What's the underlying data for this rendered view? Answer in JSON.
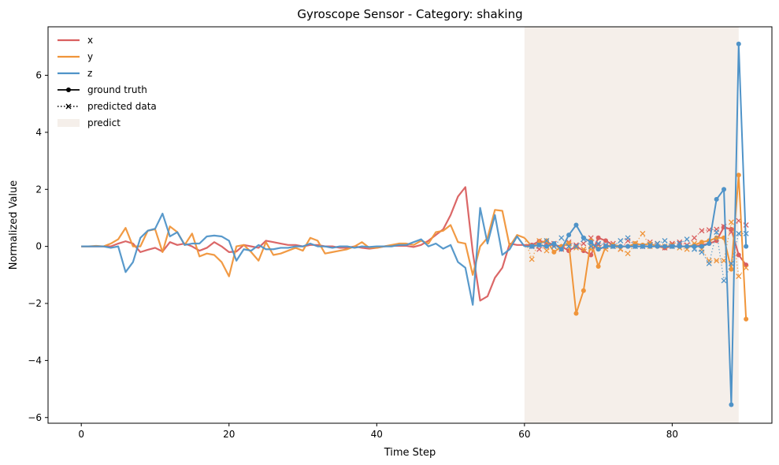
{
  "chart_data": {
    "type": "line",
    "title": "Gyroscope Sensor - Category: shaking",
    "xlabel": "Time Step",
    "ylabel": "Normalized Value",
    "xlim": [
      -4.5,
      93.5
    ],
    "ylim": [
      -6.2,
      7.7
    ],
    "xticks": [
      0,
      20,
      40,
      60,
      80
    ],
    "yticks": [
      -6,
      -4,
      -2,
      0,
      2,
      4,
      6
    ],
    "grid": false,
    "legend_position": "top-left",
    "predict_region": {
      "x_start": 60,
      "x_end": 89,
      "label": "predict",
      "color": "#f5efea"
    },
    "legend": {
      "x": "x",
      "y": "y",
      "z": "z",
      "ground_truth": "ground truth",
      "predicted": "predicted data",
      "predict": "predict"
    },
    "colors": {
      "x": "#d95f5f",
      "y": "#f0953a",
      "z": "#4f93c8"
    },
    "x_start": 0,
    "series": [
      {
        "name": "x",
        "color": "#d95f5f",
        "history": [
          0.0,
          0.0,
          0.0,
          0.0,
          0.0,
          0.1,
          0.18,
          0.1,
          -0.2,
          -0.12,
          -0.05,
          -0.18,
          0.15,
          0.05,
          0.1,
          0.0,
          -0.15,
          -0.05,
          0.15,
          0.0,
          -0.2,
          -0.18,
          0.05,
          0.0,
          -0.05,
          0.2,
          0.15,
          0.1,
          0.05,
          0.05,
          0.0,
          0.05,
          0.05,
          0.0,
          0.0,
          -0.05,
          -0.05,
          0.0,
          -0.05,
          -0.08,
          -0.05,
          0.0,
          0.02,
          0.02,
          0.02,
          -0.02,
          0.05,
          0.2,
          0.4,
          0.6,
          1.1,
          1.75,
          2.08,
          -0.2,
          -1.9,
          -1.75,
          -1.1,
          -0.75,
          0.1,
          0.05,
          0.05
        ],
        "truth": [
          0.05,
          0.18,
          0.15,
          0.05,
          0.0,
          -0.15,
          0.0,
          -0.15,
          -0.3,
          0.3,
          0.2,
          0.05,
          0.0,
          0.0,
          0.0,
          0.0,
          0.0,
          0.0,
          -0.05,
          0.0,
          0.0,
          0.0,
          0.0,
          0.05,
          0.1,
          0.2,
          0.68,
          0.6,
          -0.3,
          -0.65
        ],
        "predicted": [
          0.0,
          -0.1,
          0.0,
          0.1,
          -0.1,
          0.15,
          0.05,
          0.1,
          0.3,
          0.05,
          0.0,
          0.1,
          -0.1,
          0.2,
          0.1,
          0.0,
          0.15,
          0.1,
          -0.05,
          0.1,
          0.15,
          0.05,
          0.3,
          0.55,
          0.58,
          0.6,
          0.7,
          0.5,
          0.9,
          0.75
        ]
      },
      {
        "name": "y",
        "color": "#f0953a",
        "history": [
          0.0,
          0.0,
          0.02,
          0.0,
          0.1,
          0.25,
          0.65,
          0.0,
          0.0,
          0.55,
          0.6,
          -0.2,
          0.7,
          0.5,
          0.05,
          0.45,
          -0.35,
          -0.25,
          -0.3,
          -0.55,
          -1.05,
          0.0,
          0.05,
          -0.2,
          -0.5,
          0.15,
          -0.3,
          -0.25,
          -0.15,
          -0.05,
          -0.15,
          0.3,
          0.2,
          -0.25,
          -0.2,
          -0.15,
          -0.1,
          0.0,
          0.15,
          -0.05,
          -0.05,
          0.0,
          0.05,
          0.1,
          0.1,
          0.05,
          0.2,
          0.1,
          0.5,
          0.55,
          0.75,
          0.15,
          0.1,
          -1.0,
          0.0,
          0.3,
          1.28,
          1.25,
          0.0,
          0.4,
          0.3
        ],
        "truth": [
          0.0,
          0.1,
          0.2,
          -0.2,
          0.0,
          0.1,
          -2.35,
          -1.55,
          0.2,
          -0.7,
          0.0,
          0.05,
          0.0,
          0.0,
          0.1,
          0.05,
          0.1,
          0.0,
          0.0,
          0.0,
          0.0,
          0.0,
          0.05,
          0.15,
          0.2,
          0.3,
          0.3,
          -0.8,
          2.5,
          -2.55
        ],
        "predicted": [
          -0.45,
          0.2,
          -0.15,
          0.0,
          -0.05,
          0.1,
          -0.05,
          -0.1,
          -0.1,
          -0.05,
          -0.1,
          0.0,
          -0.1,
          -0.25,
          0.1,
          0.45,
          0.0,
          0.1,
          0.0,
          0.05,
          -0.05,
          -0.1,
          0.1,
          -0.1,
          -0.5,
          -0.5,
          -0.5,
          0.85,
          -1.05,
          -0.75
        ]
      },
      {
        "name": "z",
        "color": "#4f93c8",
        "history": [
          0.0,
          0.0,
          0.0,
          0.0,
          -0.05,
          0.0,
          -0.9,
          -0.55,
          0.3,
          0.55,
          0.62,
          1.15,
          0.35,
          0.5,
          0.05,
          0.1,
          0.1,
          0.35,
          0.38,
          0.35,
          0.2,
          -0.5,
          -0.1,
          -0.15,
          0.05,
          -0.1,
          -0.1,
          -0.05,
          -0.05,
          0.0,
          0.0,
          0.1,
          0.0,
          0.0,
          -0.05,
          0.0,
          0.0,
          -0.05,
          0.0,
          -0.02,
          0.0,
          0.0,
          0.0,
          0.05,
          0.05,
          0.15,
          0.25,
          0.0,
          0.1,
          -0.08,
          0.05,
          -0.55,
          -0.75,
          -2.05,
          1.35,
          0.1,
          1.1,
          -0.3,
          -0.1,
          0.35,
          0.0
        ],
        "truth": [
          0.0,
          0.05,
          0.0,
          0.1,
          -0.1,
          0.4,
          0.75,
          0.3,
          0.15,
          -0.1,
          0.0,
          0.0,
          0.0,
          0.0,
          0.0,
          0.0,
          0.0,
          0.0,
          0.0,
          0.0,
          0.0,
          0.0,
          0.0,
          0.0,
          0.1,
          1.65,
          2.0,
          -5.55,
          7.1,
          0.0
        ],
        "predicted": [
          0.0,
          0.05,
          0.2,
          0.0,
          0.3,
          0.0,
          0.0,
          0.25,
          0.0,
          0.1,
          0.05,
          0.0,
          0.2,
          0.3,
          0.0,
          0.0,
          0.05,
          0.1,
          0.2,
          0.0,
          0.1,
          0.25,
          -0.1,
          -0.2,
          -0.6,
          0.5,
          -1.2,
          -0.6,
          0.45,
          0.45
        ]
      }
    ]
  }
}
